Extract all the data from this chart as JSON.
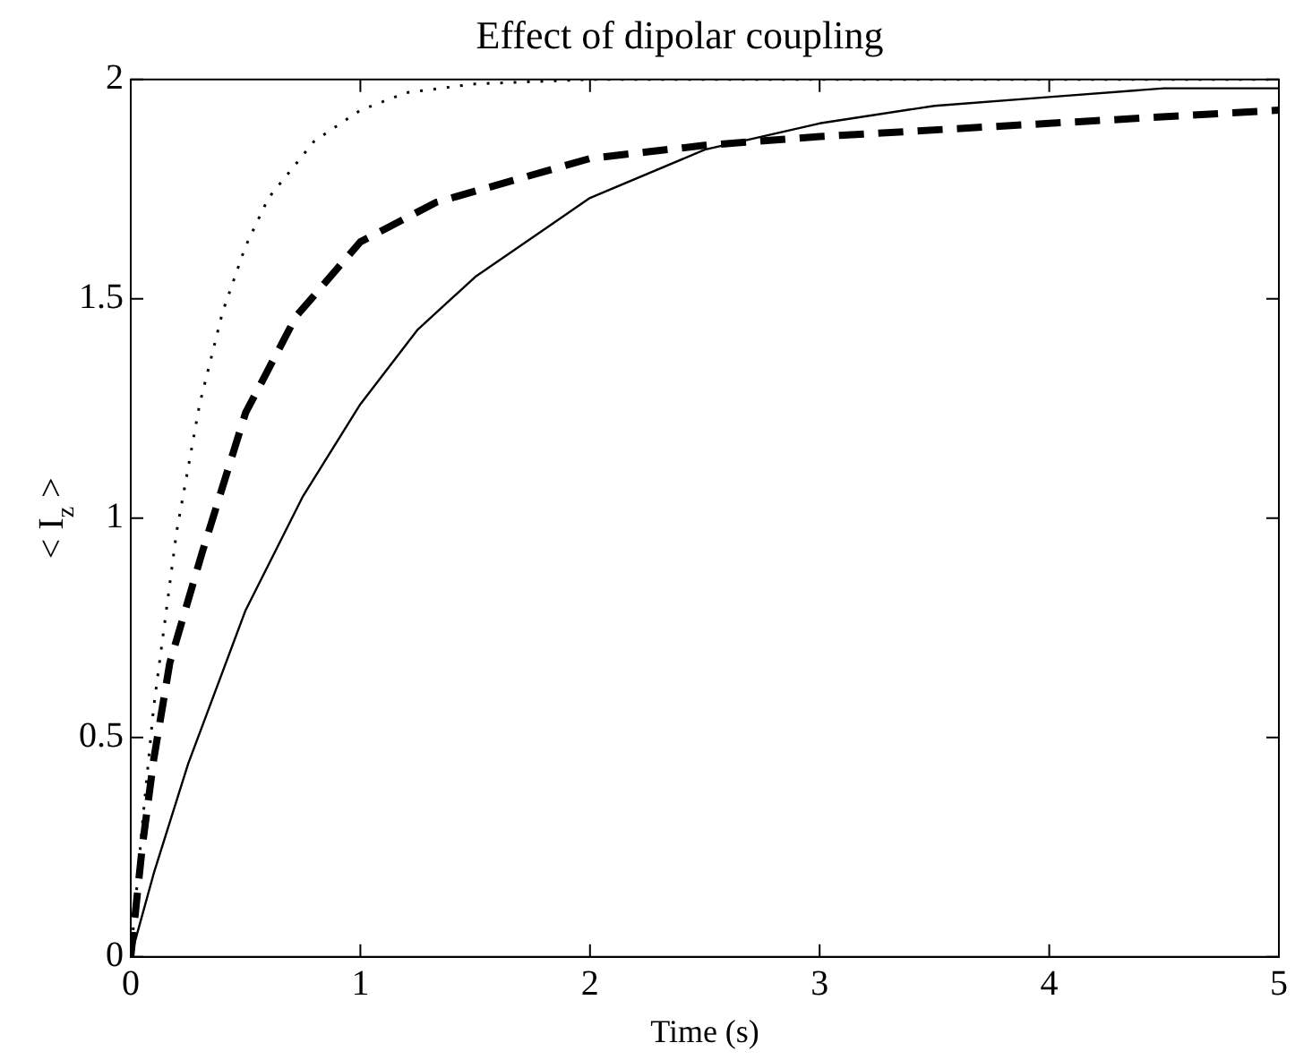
{
  "chart_data": {
    "type": "line",
    "title": "Effect of dipolar coupling",
    "xlabel": "Time (s)",
    "ylabel": "< I$_{z}$ >",
    "xlim": [
      0,
      5
    ],
    "xticks": [
      0,
      1,
      2,
      3,
      4,
      5
    ],
    "ylim": [
      0,
      2
    ],
    "yticks": [
      0,
      0.5,
      1,
      1.5,
      2
    ],
    "grid": false,
    "legend": false,
    "marker": "none",
    "series": [
      {
        "color": "#000000",
        "line_style": "solid",
        "x": [
          0,
          0.1,
          0.25,
          0.5,
          0.75,
          1,
          1.25,
          1.5,
          2,
          2.5,
          3,
          3.5,
          4,
          4.5,
          5
        ],
        "values": [
          0,
          0.19,
          0.44,
          0.79,
          1.05,
          1.26,
          1.43,
          1.55,
          1.73,
          1.84,
          1.9,
          1.94,
          1.96,
          1.98,
          1.98
        ]
      },
      {
        "color": "#000000",
        "line_style": "dotted",
        "x": [
          0,
          0.05,
          0.1,
          0.2,
          0.3,
          0.4,
          0.5,
          0.6,
          0.8,
          1,
          1.2,
          1.5,
          2,
          3,
          4,
          5
        ],
        "values": [
          0,
          0.3,
          0.57,
          0.97,
          1.26,
          1.47,
          1.62,
          1.73,
          1.86,
          1.93,
          1.97,
          1.99,
          2,
          2,
          2,
          2
        ]
      },
      {
        "color": "#000000",
        "line_style": "dashed",
        "x": [
          0,
          0.05,
          0.1,
          0.17,
          0.31,
          0.5,
          0.72,
          1,
          1.33,
          2,
          2.5,
          3,
          4,
          5
        ],
        "values": [
          0,
          0.25,
          0.45,
          0.67,
          0.92,
          1.24,
          1.46,
          1.63,
          1.72,
          1.82,
          1.85,
          1.87,
          1.9,
          1.93
        ]
      }
    ]
  }
}
